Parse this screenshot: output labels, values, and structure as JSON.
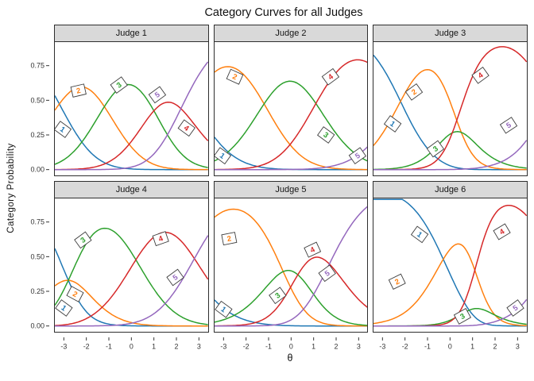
{
  "chart_data": {
    "type": "line",
    "title": "Category Curves for all Judges",
    "xlabel": "θ",
    "ylabel": "Category  Probability",
    "x_range": [
      -3.4,
      3.4
    ],
    "y_range": [
      -0.042,
      0.92
    ],
    "grid": "off",
    "legend": "direct-labels-in-panel",
    "x_ticks": [
      {
        "value": -3,
        "label": "-3"
      },
      {
        "value": -2,
        "label": "-2"
      },
      {
        "value": -1,
        "label": "-1"
      },
      {
        "value": 0,
        "label": "0"
      },
      {
        "value": 1,
        "label": "1"
      },
      {
        "value": 2,
        "label": "2"
      },
      {
        "value": 3,
        "label": "3"
      }
    ],
    "y_ticks": [
      {
        "value": 0.0,
        "label": "0.00"
      },
      {
        "value": 0.25,
        "label": "0.25"
      },
      {
        "value": 0.5,
        "label": "0.50"
      },
      {
        "value": 0.75,
        "label": "0.75"
      }
    ],
    "categories": [
      {
        "label": "1",
        "color": "#1f77b4"
      },
      {
        "label": "2",
        "color": "#ff7f0e"
      },
      {
        "label": "3",
        "color": "#2ca02c"
      },
      {
        "label": "4",
        "color": "#d62728"
      },
      {
        "label": "5",
        "color": "#9467bd"
      }
    ],
    "model": "generalized_partial_credit_category_curves",
    "facets": [
      {
        "label": "Judge 1",
        "a": 1.1,
        "thresholds": [
          -3.2,
          -1.2,
          1.0,
          2.2
        ],
        "curve_labels": [
          {
            "category": "1",
            "theta": -3.05,
            "p": 0.29
          },
          {
            "category": "2",
            "theta": -2.35,
            "p": 0.57
          },
          {
            "category": "3",
            "theta": -0.55,
            "p": 0.61
          },
          {
            "category": "5",
            "theta": 1.15,
            "p": 0.54
          },
          {
            "category": "4",
            "theta": 2.45,
            "p": 0.3
          }
        ]
      },
      {
        "label": "Judge 2",
        "a": 1.1,
        "thresholds": [
          -4.4,
          -1.2,
          1.1,
          4.8
        ],
        "curve_labels": [
          {
            "category": "1",
            "theta": -3.05,
            "p": 0.1
          },
          {
            "category": "2",
            "theta": -2.5,
            "p": 0.67
          },
          {
            "category": "3",
            "theta": 1.55,
            "p": 0.25
          },
          {
            "category": "4",
            "theta": 1.75,
            "p": 0.67
          },
          {
            "category": "5",
            "theta": 2.95,
            "p": 0.1
          }
        ]
      },
      {
        "label": "Judge 3",
        "a": 1.3,
        "thresholds": [
          -2.2,
          0.5,
          0.1,
          4.4
        ],
        "curve_labels": [
          {
            "category": "1",
            "theta": -2.55,
            "p": 0.33
          },
          {
            "category": "2",
            "theta": -1.6,
            "p": 0.56
          },
          {
            "category": "3",
            "theta": -0.65,
            "p": 0.15
          },
          {
            "category": "4",
            "theta": 1.35,
            "p": 0.68
          },
          {
            "category": "5",
            "theta": 2.6,
            "p": 0.32
          }
        ]
      },
      {
        "label": "Judge 4",
        "a": 1.1,
        "thresholds": [
          -2.8,
          -2.8,
          0.2,
          2.8
        ],
        "curve_labels": [
          {
            "category": "1",
            "theta": -3.0,
            "p": 0.13
          },
          {
            "category": "2",
            "theta": -2.5,
            "p": 0.23
          },
          {
            "category": "3",
            "theta": -2.15,
            "p": 0.62
          },
          {
            "category": "4",
            "theta": 1.3,
            "p": 0.63
          },
          {
            "category": "5",
            "theta": 1.95,
            "p": 0.35
          }
        ]
      },
      {
        "label": "Judge 5",
        "a": 1.1,
        "thresholds": [
          -4.7,
          -0.35,
          0.3,
          1.7
        ],
        "curve_labels": [
          {
            "category": "1",
            "theta": -3.0,
            "p": 0.12
          },
          {
            "category": "2",
            "theta": -2.75,
            "p": 0.63
          },
          {
            "category": "3",
            "theta": -0.6,
            "p": 0.22
          },
          {
            "category": "4",
            "theta": 0.95,
            "p": 0.55
          },
          {
            "category": "5",
            "theta": 1.6,
            "p": 0.38
          }
        ]
      },
      {
        "label": "Judge 6",
        "a": 1.3,
        "thresholds": [
          -0.3,
          2.0,
          0.2,
          4.5
        ],
        "curve_labels": [
          {
            "category": "1",
            "theta": -1.35,
            "p": 0.66
          },
          {
            "category": "2",
            "theta": -2.35,
            "p": 0.32
          },
          {
            "category": "3",
            "theta": 0.55,
            "p": 0.07
          },
          {
            "category": "4",
            "theta": 2.3,
            "p": 0.68
          },
          {
            "category": "5",
            "theta": 2.9,
            "p": 0.13
          }
        ]
      }
    ]
  },
  "style": {
    "strip_bg": "#d9d9d9",
    "panel_border": "#2e2e2e",
    "tick_color": "#333333",
    "label_box_fill": "#ffffff",
    "label_box_border": "#3c3c3c"
  }
}
